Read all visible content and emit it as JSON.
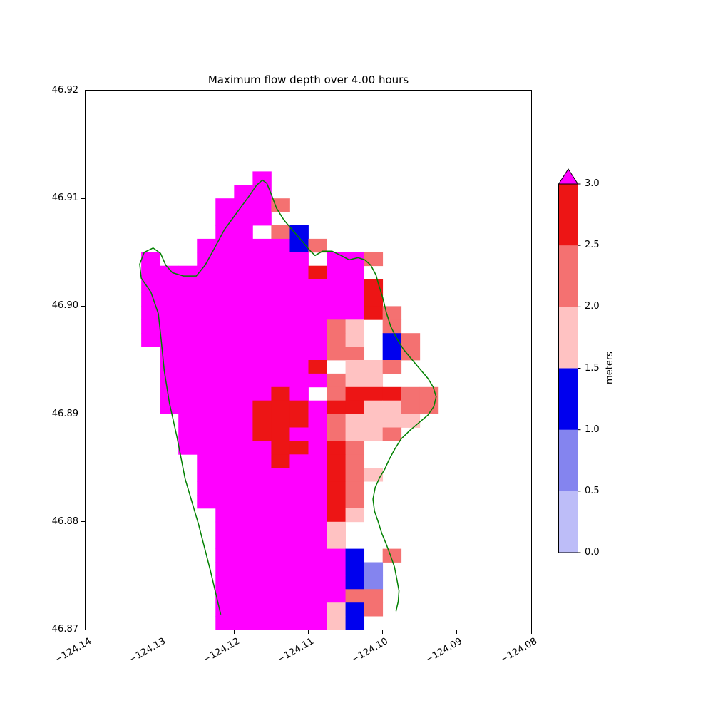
{
  "title": "Maximum flow depth over 4.00 hours",
  "axes": {
    "x_ticks": [
      "−124.14",
      "−124.13",
      "−124.12",
      "−124.11",
      "−124.10",
      "−124.09",
      "−124.08"
    ],
    "y_ticks": [
      "46.92",
      "46.91",
      "46.90",
      "46.89",
      "46.88",
      "46.87"
    ],
    "xlim": [
      -124.14,
      -124.08
    ],
    "ylim": [
      46.87,
      46.92
    ]
  },
  "colorbar": {
    "label": "meters",
    "ticks_top_to_bottom": [
      "3.0",
      "2.5",
      "2.0",
      "1.5",
      "1.0",
      "0.5",
      "0.0"
    ],
    "over_color": "#ff00ff",
    "segments_bottom_to_top": [
      {
        "range": "0.0–0.5",
        "color": "#bdbdf8"
      },
      {
        "range": "0.5–1.0",
        "color": "#8484ef"
      },
      {
        "range": "1.0–1.5",
        "color": "#0000ee"
      },
      {
        "range": "1.5–2.0",
        "color": "#ffc2c2"
      },
      {
        "range": "2.0–2.5",
        "color": "#f47171"
      },
      {
        "range": "2.5–3.0",
        "color": "#ed1515"
      }
    ]
  },
  "chart_data": {
    "type": "heatmap",
    "title": "Maximum flow depth over 4.00 hours",
    "units": "meters",
    "lon_range": [
      -124.14,
      -124.08
    ],
    "lat_range": [
      46.87,
      46.92
    ],
    "grid_cols": 24,
    "grid_rows": 40,
    "cell_deg": {
      "lon": 0.0025,
      "lat": 0.00125
    },
    "legend": {
      "M": ">3.0 m (over)",
      "R": "2.5–3.0 m",
      "S": "2.0–2.5 m",
      "P": "1.5–2.0 m",
      "B": "1.0–1.5 m",
      "b": "0.5–1.0 m",
      "L": "0.0–0.5 m",
      ".": "no flooding / no data"
    },
    "colors": {
      "M": "#ff00ff",
      "R": "#ed1515",
      "S": "#f47171",
      "P": "#ffc2c2",
      "B": "#0000ee",
      "b": "#8484ef",
      "L": "#bdbdf8"
    },
    "grid": [
      "........................",
      "........................",
      "........................",
      "........................",
      "........................",
      "........................",
      ".........M..............",
      "........MM..............",
      ".......MMMS.............",
      ".......MMM..............",
      ".......MM.SB............",
      "......MMMMMBS...........",
      "...M..MMMMMM.MMS........",
      "...MMMMMMMMMRMM.........",
      "...MMMMMMMMMMMMR........",
      "...MMMMMMMMMMMMR........",
      "...MMMMMMMMMMMMRS.......",
      "...MMMMMMMMMMSP.S.......",
      "...MMMMMMMMMMSP.BS......",
      "....MMMMMMMMMSS.BS......",
      "....MMMMMMMMR.PPS.......",
      "....MMMMMMMMMSPP........",
      "....MMMMMMRM.SRRRSS.....",
      "....MMMMMRRRMRRPPSS.....",
      ".....MMMMRRRMSPPPP......",
      ".....MMMMRRMMSPPS.......",
      ".....MMMMMRRMRS.........",
      "......MMMMRMMRS.........",
      "......MMMMMMMRSP........",
      "......MMMMMMMRS.........",
      "......MMMMMMMRS.........",
      ".......MMMMMMRP.........",
      ".......MMMMMMP..........",
      ".......MMMMMMP..........",
      ".......MMMMMMMB.S.......",
      ".......MMMMMMMBb........",
      ".......MMMMMMMBb........",
      ".......MMMMMMMSS........",
      ".......MMMMMMPBS........",
      ".......MMMMMMPB........."
    ],
    "coastline": {
      "color": "#008000",
      "points": [
        [
          -124.1218,
          46.8714
        ],
        [
          -124.1232,
          46.8755
        ],
        [
          -124.1248,
          46.8798
        ],
        [
          -124.1266,
          46.884
        ],
        [
          -124.1277,
          46.8879
        ],
        [
          -124.1287,
          46.891
        ],
        [
          -124.1294,
          46.894
        ],
        [
          -124.1298,
          46.8968
        ],
        [
          -124.1302,
          46.8993
        ],
        [
          -124.1312,
          46.9013
        ],
        [
          -124.1325,
          46.9026
        ],
        [
          -124.1327,
          46.9039
        ],
        [
          -124.1321,
          46.905
        ],
        [
          -124.1309,
          46.9054
        ],
        [
          -124.1299,
          46.9049
        ],
        [
          -124.1292,
          46.9038
        ],
        [
          -124.1283,
          46.9031
        ],
        [
          -124.1268,
          46.9028
        ],
        [
          -124.1251,
          46.9028
        ],
        [
          -124.1239,
          46.9038
        ],
        [
          -124.1227,
          46.9053
        ],
        [
          -124.1213,
          46.9071
        ],
        [
          -124.1196,
          46.9087
        ],
        [
          -124.1181,
          46.9101
        ],
        [
          -124.117,
          46.9112
        ],
        [
          -124.1162,
          46.9117
        ],
        [
          -124.1156,
          46.9114
        ],
        [
          -124.115,
          46.9104
        ],
        [
          -124.1143,
          46.9091
        ],
        [
          -124.1133,
          46.908
        ],
        [
          -124.1122,
          46.9071
        ],
        [
          -124.1108,
          46.906
        ],
        [
          -124.1097,
          46.9051
        ],
        [
          -124.1091,
          46.9047
        ],
        [
          -124.1081,
          46.9051
        ],
        [
          -124.1068,
          46.9051
        ],
        [
          -124.1056,
          46.9047
        ],
        [
          -124.1045,
          46.9043
        ],
        [
          -124.1033,
          46.9045
        ],
        [
          -124.1024,
          46.9043
        ],
        [
          -124.1016,
          46.9038
        ],
        [
          -124.1009,
          46.9029
        ],
        [
          -124.1005,
          46.9019
        ],
        [
          -124.1,
          46.9008
        ],
        [
          -124.0995,
          46.8994
        ],
        [
          -124.0989,
          46.8981
        ],
        [
          -124.0981,
          46.897
        ],
        [
          -124.0972,
          46.896
        ],
        [
          -124.096,
          46.895
        ],
        [
          -124.0949,
          46.8941
        ],
        [
          -124.0939,
          46.8933
        ],
        [
          -124.0932,
          46.8925
        ],
        [
          -124.0928,
          46.8916
        ],
        [
          -124.0931,
          46.8907
        ],
        [
          -124.0939,
          46.8899
        ],
        [
          -124.0951,
          46.8892
        ],
        [
          -124.0963,
          46.8885
        ],
        [
          -124.0975,
          46.8877
        ],
        [
          -124.0984,
          46.8867
        ],
        [
          -124.0991,
          46.8858
        ],
        [
          -124.0997,
          46.8849
        ],
        [
          -124.1004,
          46.8841
        ],
        [
          -124.101,
          46.8832
        ],
        [
          -124.1013,
          46.8821
        ],
        [
          -124.1011,
          46.881
        ],
        [
          -124.1006,
          46.88
        ],
        [
          -124.1001,
          46.8789
        ],
        [
          -124.0995,
          46.8779
        ],
        [
          -124.0989,
          46.8768
        ],
        [
          -124.0984,
          46.8758
        ],
        [
          -124.0981,
          46.8747
        ],
        [
          -124.0978,
          46.8736
        ],
        [
          -124.0979,
          46.8726
        ],
        [
          -124.0982,
          46.8717
        ]
      ]
    }
  }
}
